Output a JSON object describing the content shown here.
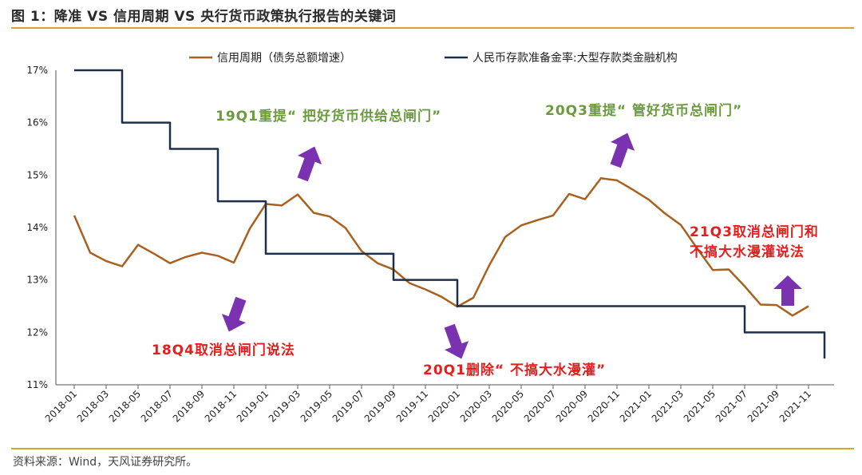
{
  "figure_title": "图 1：降准 VS 信用周期 VS 央行货币政策执行报告的关键词",
  "source": "资料来源：Wind，天风证券研究所。",
  "colors": {
    "rule": "#d8a23a",
    "credit": "#a8611e",
    "rrr": "#1e2f4a",
    "green": "#6b9a3f",
    "red": "#e51e1e",
    "arrow": "#7b32b0"
  },
  "chart_data": {
    "type": "line",
    "ylim": [
      11,
      17
    ],
    "ytick_labels": [
      "17%",
      "16%",
      "15%",
      "14%",
      "13%",
      "12%",
      "11%"
    ],
    "ytick_values": [
      17,
      16,
      15,
      14,
      13,
      12,
      11
    ],
    "xtick_labels": [
      "2018-01",
      "2018-03",
      "2018-05",
      "2018-07",
      "2018-09",
      "2018-11",
      "2019-01",
      "2019-03",
      "2019-05",
      "2019-07",
      "2019-09",
      "2019-11",
      "2020-01",
      "2020-03",
      "2020-05",
      "2020-07",
      "2020-09",
      "2020-11",
      "2021-01",
      "2021-03",
      "2021-05",
      "2021-07",
      "2021-09",
      "2021-11"
    ],
    "x": [
      "2018-01",
      "2018-02",
      "2018-03",
      "2018-04",
      "2018-05",
      "2018-06",
      "2018-07",
      "2018-08",
      "2018-09",
      "2018-10",
      "2018-11",
      "2018-12",
      "2019-01",
      "2019-02",
      "2019-03",
      "2019-04",
      "2019-05",
      "2019-06",
      "2019-07",
      "2019-08",
      "2019-09",
      "2019-10",
      "2019-11",
      "2019-12",
      "2020-01",
      "2020-02",
      "2020-03",
      "2020-04",
      "2020-05",
      "2020-06",
      "2020-07",
      "2020-08",
      "2020-09",
      "2020-10",
      "2020-11",
      "2020-12",
      "2021-01",
      "2021-02",
      "2021-03",
      "2021-04",
      "2021-05",
      "2021-06",
      "2021-07",
      "2021-08",
      "2021-09",
      "2021-10",
      "2021-11",
      "2021-12"
    ],
    "series": [
      {
        "name": "信用周期（债务总额增速）",
        "color": "#a8611e",
        "values": [
          14.23,
          13.52,
          13.36,
          13.26,
          13.67,
          13.5,
          13.32,
          13.44,
          13.52,
          13.46,
          13.33,
          13.98,
          14.45,
          14.42,
          14.63,
          14.28,
          14.21,
          13.99,
          13.55,
          13.32,
          13.2,
          12.94,
          12.82,
          12.68,
          12.49,
          12.66,
          13.28,
          13.82,
          14.04,
          14.14,
          14.23,
          14.64,
          14.54,
          14.94,
          14.9,
          14.72,
          14.53,
          14.27,
          14.05,
          13.61,
          13.19,
          13.2,
          12.88,
          12.53,
          12.52,
          12.32,
          12.5,
          null
        ]
      },
      {
        "name": "人民币存款准备金率:大型存款类金融机构",
        "color": "#1e2f4a",
        "values": [
          17,
          17,
          17,
          16,
          16,
          16,
          15.5,
          15.5,
          15.5,
          14.5,
          14.5,
          14.5,
          13.5,
          13.5,
          13.5,
          13.5,
          13.5,
          13.5,
          13.5,
          13.5,
          13,
          13,
          13,
          13,
          12.5,
          12.5,
          12.5,
          12.5,
          12.5,
          12.5,
          12.5,
          12.5,
          12.5,
          12.5,
          12.5,
          12.5,
          12.5,
          12.5,
          12.5,
          12.5,
          12.5,
          12.5,
          12,
          12,
          12,
          12,
          12,
          11.5
        ]
      }
    ],
    "legend": [
      "信用周期（债务总额增速）",
      "人民币存款准备金率:大型存款类金融机构"
    ],
    "legend_position": "top",
    "grid": false,
    "annotations": [
      {
        "text": "19Q1重提“ 把好货币供给总闸门”",
        "color": "green",
        "arrow": "up"
      },
      {
        "text": "20Q3重提“ 管好货币总闸门”",
        "color": "green",
        "arrow": "up"
      },
      {
        "text": "18Q4取消总闸门说法",
        "color": "red",
        "arrow": "down"
      },
      {
        "text": "20Q1删除“ 不搞大水漫灌”",
        "color": "red",
        "arrow": "down"
      },
      {
        "text_lines": [
          "21Q3取消总闸门和",
          "不搞大水漫灌说法"
        ],
        "color": "red",
        "arrow": "up"
      }
    ]
  }
}
